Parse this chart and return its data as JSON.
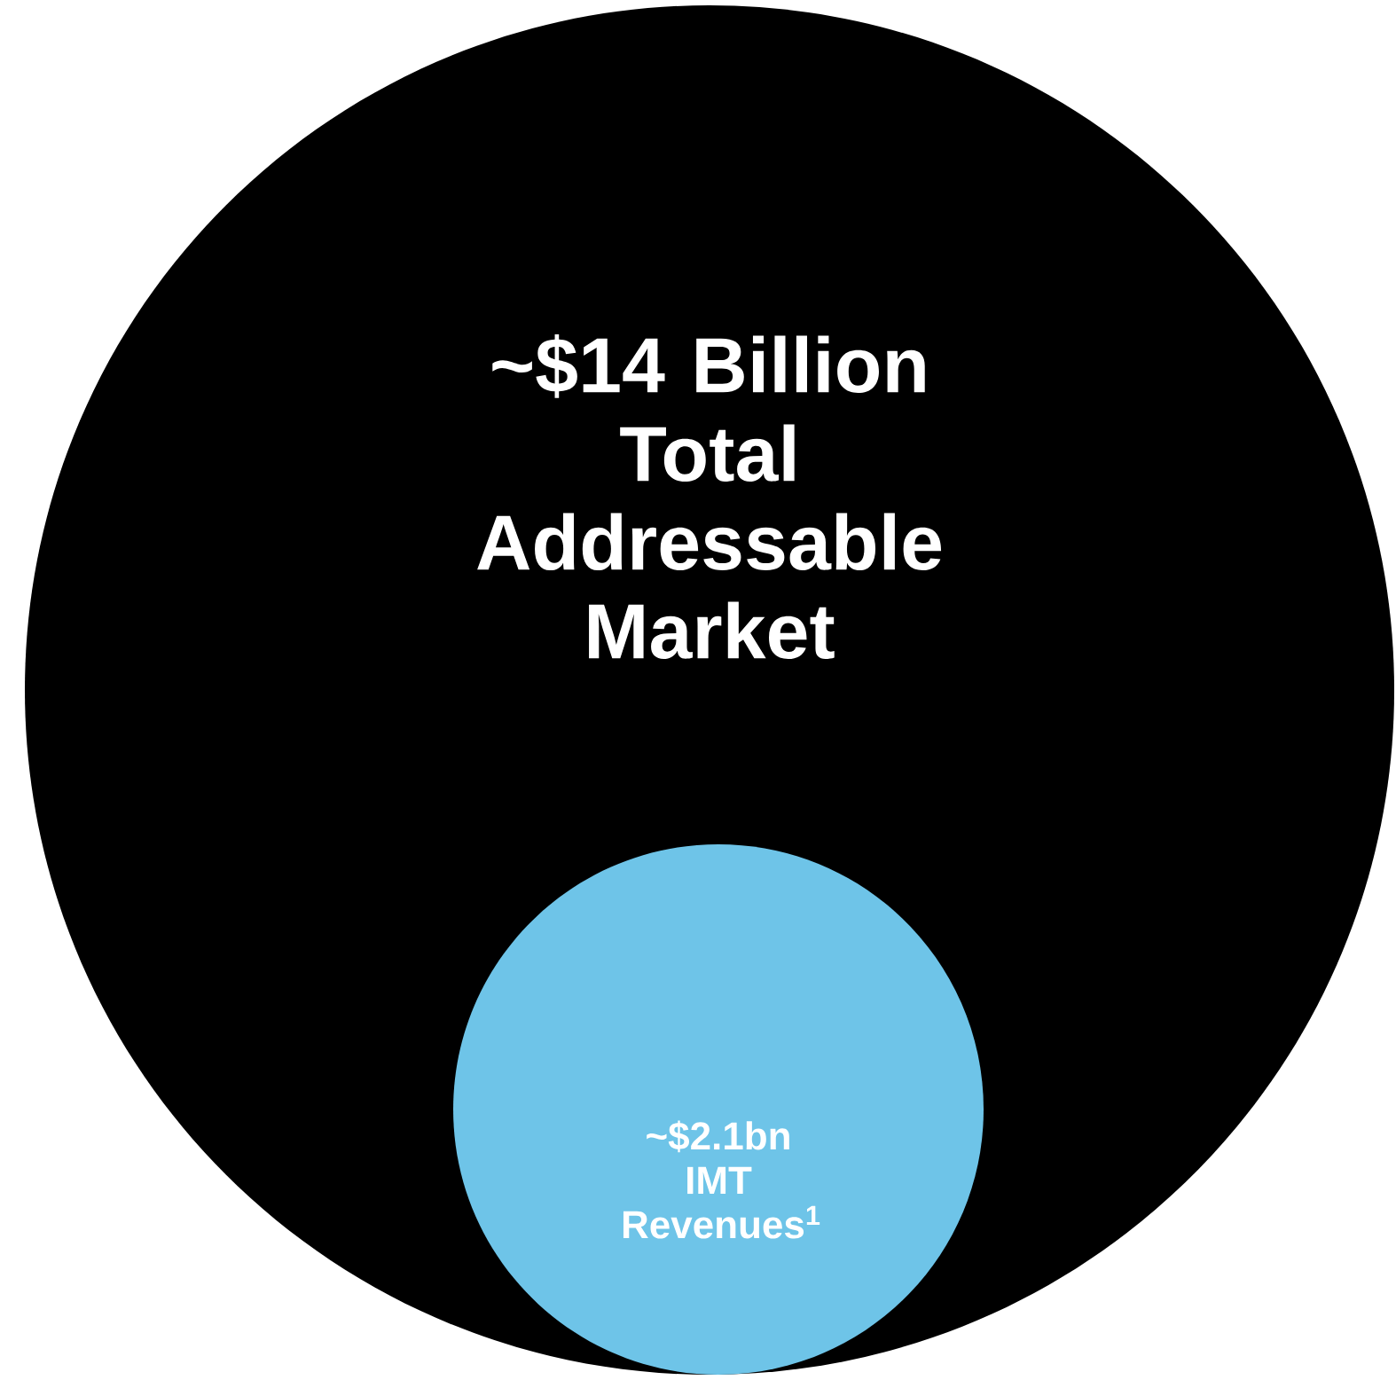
{
  "chart_data": {
    "type": "other",
    "categories": [
      "Total Addressable Market",
      "IMT Revenues$^{1}$"
    ],
    "values": [
      14,
      2.1
    ],
    "value_labels": [
      "~$14 Billion",
      "~$2.1bn"
    ],
    "colors": [
      "#000000",
      "#6ec4e8"
    ]
  }
}
